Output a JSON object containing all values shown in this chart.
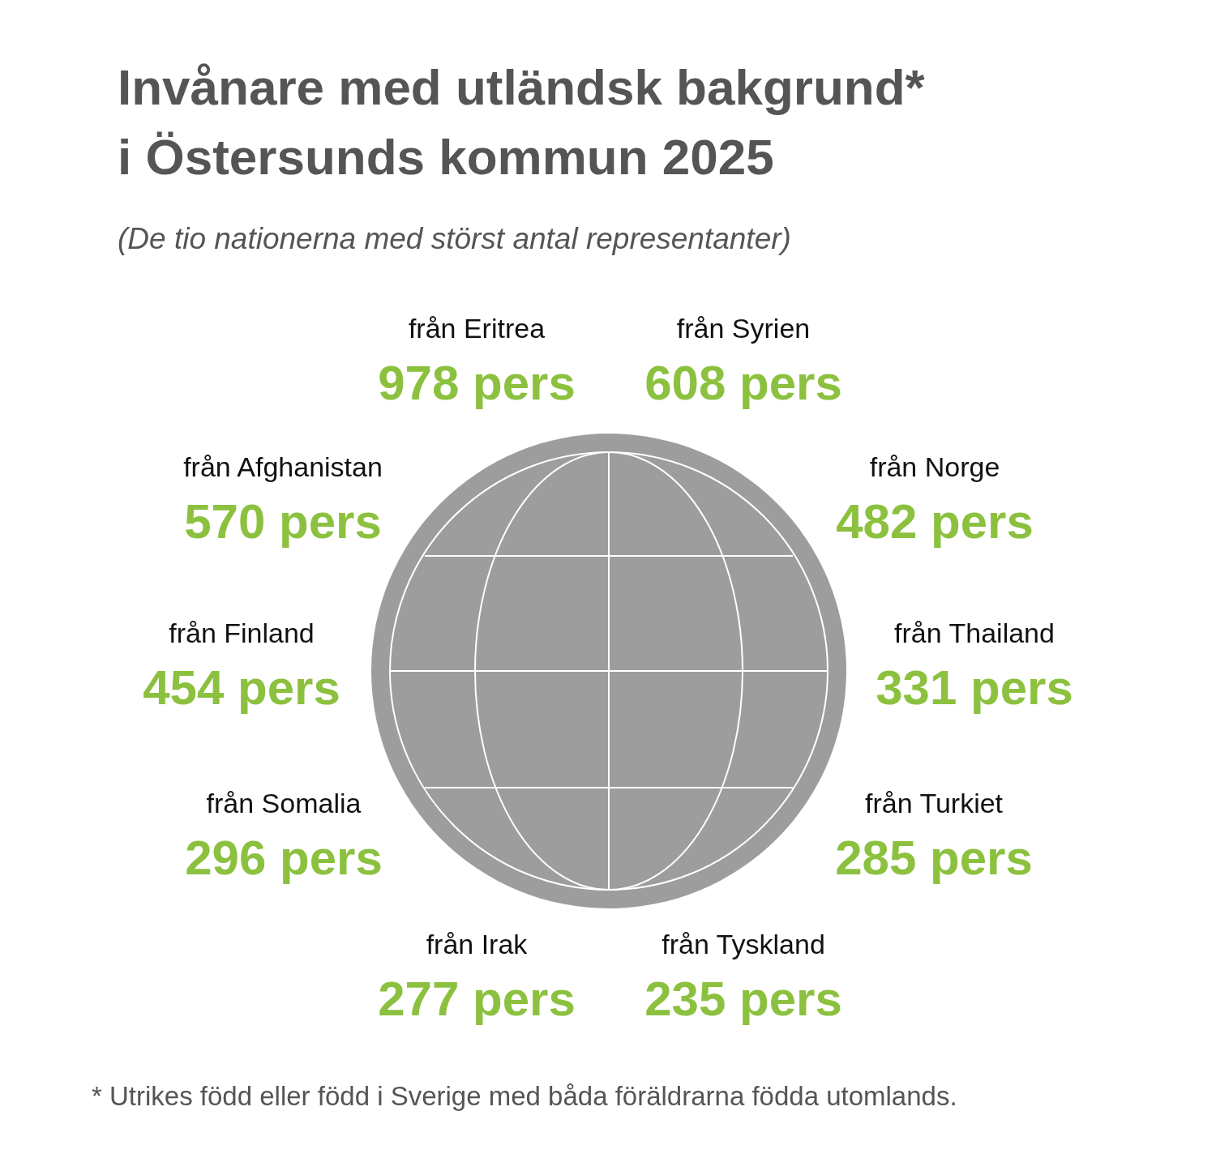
{
  "chart_data": {
    "type": "other",
    "title": "Invånare med utländsk bakgrund*\ni Östersunds kommun 2025",
    "subtitle": "(De tio nationerna med störst antal representanter)",
    "categories": [
      "från Eritrea",
      "från Syrien",
      "från Afghanistan",
      "från Norge",
      "från Finland",
      "från Thailand",
      "från Somalia",
      "från Turkiet",
      "från Irak",
      "från Tyskland"
    ],
    "values": [
      978,
      608,
      570,
      482,
      454,
      331,
      296,
      285,
      277,
      235
    ],
    "value_labels": [
      "978 pers",
      "608 pers",
      "570 pers",
      "482 pers",
      "454 pers",
      "331 pers",
      "296 pers",
      "285 pers",
      "277 pers",
      "235 pers"
    ],
    "color": "#8cc13f",
    "annotations": [
      "* Utrikes född eller född i Sverige med båda föräldrarna födda utomlands."
    ]
  }
}
